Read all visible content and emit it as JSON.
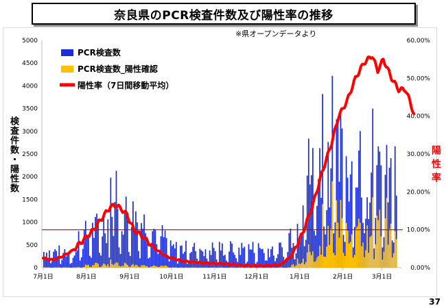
{
  "title": "奈良県のPCR検査件数及び陽性率の推移",
  "page_number": "37",
  "colors": {
    "tests": "#1a2ed6",
    "positives": "#ffc000",
    "rate": "#ff0000",
    "reference_line": "#c00000"
  },
  "chart_data": {
    "type": "bar",
    "title": "奈良県のPCR検査件数及び陽性率の推移",
    "source_note": "※県オープンデータより",
    "ylabel": "検査件数・陽性数",
    "y2label": "陽性率",
    "ylim": [
      0,
      5000
    ],
    "y2lim": [
      0,
      0.6
    ],
    "yticks": [
      "0",
      "500",
      "1000",
      "1500",
      "2000",
      "2500",
      "3000",
      "3500",
      "4000",
      "4500",
      "5000"
    ],
    "y2ticks": [
      "0.00%",
      "10.00%",
      "20.00%",
      "30.00%",
      "40.00%",
      "50.00%",
      "60.00%"
    ],
    "xlabels": [
      "7月1日",
      "8月1日",
      "9月1日",
      "10月1日",
      "11月1日",
      "12月1日",
      "1月1日",
      "2月1日",
      "3月1日"
    ],
    "legend": [
      "PCR検査数",
      "PCR検査数_陽性確認",
      "陽性率（7日間移動平均）"
    ],
    "legend_position": "top-left",
    "reference_line_value": 0.1,
    "rate_control_points": [
      [
        0,
        0.025
      ],
      [
        7,
        0.02
      ],
      [
        14,
        0.03
      ],
      [
        21,
        0.045
      ],
      [
        28,
        0.07
      ],
      [
        35,
        0.095
      ],
      [
        42,
        0.13
      ],
      [
        48,
        0.16
      ],
      [
        52,
        0.165
      ],
      [
        56,
        0.155
      ],
      [
        60,
        0.14
      ],
      [
        65,
        0.1
      ],
      [
        72,
        0.08
      ],
      [
        80,
        0.05
      ],
      [
        88,
        0.03
      ],
      [
        100,
        0.017
      ],
      [
        115,
        0.012
      ],
      [
        130,
        0.01
      ],
      [
        145,
        0.005
      ],
      [
        160,
        0.005
      ],
      [
        170,
        0.007
      ],
      [
        178,
        0.03
      ],
      [
        186,
        0.09
      ],
      [
        193,
        0.16
      ],
      [
        200,
        0.25
      ],
      [
        207,
        0.33
      ],
      [
        212,
        0.4
      ],
      [
        218,
        0.44
      ],
      [
        224,
        0.5
      ],
      [
        230,
        0.54
      ],
      [
        236,
        0.56
      ],
      [
        240,
        0.52
      ],
      [
        244,
        0.55
      ],
      [
        250,
        0.5
      ],
      [
        255,
        0.47
      ],
      [
        260,
        0.47
      ],
      [
        263,
        0.44
      ],
      [
        266,
        0.405
      ]
    ]
  }
}
